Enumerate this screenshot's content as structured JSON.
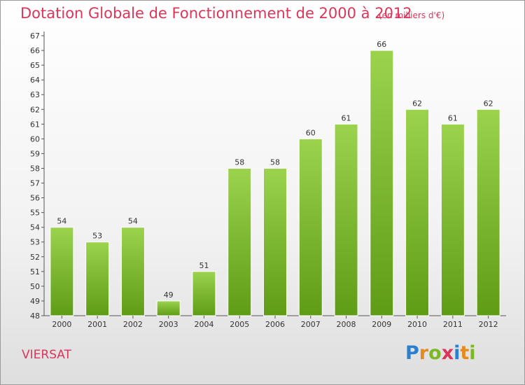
{
  "header": {
    "title": "Dotation Globale de Fonctionnement de 2000 à 2012",
    "unit": "(en milliers d'€)"
  },
  "footer": {
    "commune": "VIERSAT",
    "logo_letters": [
      "P",
      "r",
      "o",
      "x",
      "i",
      "t",
      "i"
    ]
  },
  "colors": {
    "accent": "#d9365a",
    "bar_top": "#9bd34d",
    "bar_bottom": "#5f9c16"
  },
  "chart_data": {
    "type": "bar",
    "title": "Dotation Globale de Fonctionnement de 2000 à 2012",
    "subtitle": "(en milliers d'€)",
    "xlabel": "",
    "ylabel": "",
    "categories": [
      "2000",
      "2001",
      "2002",
      "2003",
      "2004",
      "2005",
      "2006",
      "2007",
      "2008",
      "2009",
      "2010",
      "2011",
      "2012"
    ],
    "values": [
      54,
      53,
      54,
      49,
      51,
      58,
      58,
      60,
      61,
      66,
      62,
      61,
      62
    ],
    "ylim": [
      48,
      67
    ],
    "yticks": [
      48,
      49,
      50,
      51,
      52,
      53,
      54,
      55,
      56,
      57,
      58,
      59,
      60,
      61,
      62,
      63,
      64,
      65,
      66,
      67
    ],
    "grid": false,
    "legend": "none"
  }
}
